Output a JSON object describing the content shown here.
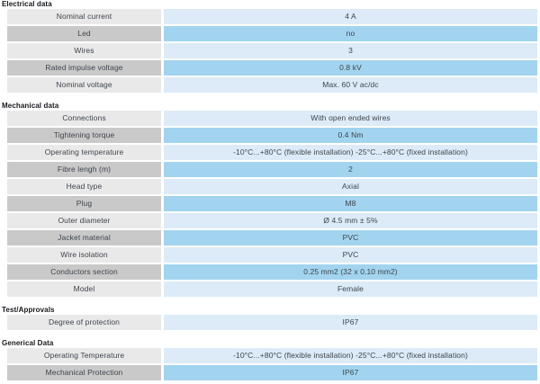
{
  "colors": {
    "label_cell_light": "#e9e9e9",
    "label_cell_dark": "#c9c9c9",
    "value_cell_light": "#dcebf7",
    "value_cell_dark": "#a2d4ef",
    "text": "#3e444c",
    "title_text": "#16191d"
  },
  "table": {
    "sections": [
      {
        "title": "Electrical data",
        "rows": [
          {
            "label": "Nominal current",
            "value": "4 A"
          },
          {
            "label": "Led",
            "value": "no"
          },
          {
            "label": "Wires",
            "value": "3"
          },
          {
            "label": "Rated impulse voltage",
            "value": "0.8 kV"
          },
          {
            "label": "Nominal voltage",
            "value": "Max. 60 V ac/dc"
          }
        ]
      },
      {
        "title": "Mechanical data",
        "rows": [
          {
            "label": "Connections",
            "value": "With open ended wires"
          },
          {
            "label": "Tightening torque",
            "value": "0.4 Nm"
          },
          {
            "label": "Operating temperature",
            "value": "-10°C...+80°C (flexible installation) -25°C...+80°C (fixed installation)"
          },
          {
            "label": "Fibre lengh (m)",
            "value": "2"
          },
          {
            "label": "Head type",
            "value": "Axial"
          },
          {
            "label": "Plug",
            "value": "M8"
          },
          {
            "label": "Outer diameter",
            "value": "Ø 4.5 mm ± 5%"
          },
          {
            "label": "Jacket material",
            "value": "PVC"
          },
          {
            "label": "Wire isolation",
            "value": "PVC"
          },
          {
            "label": "Conductors section",
            "value": "0.25 mm2 (32 x 0.10 mm2)"
          },
          {
            "label": "Model",
            "value": "Female"
          }
        ]
      },
      {
        "title": "Test/Approvals",
        "rows": [
          {
            "label": "Degree of protection",
            "value": "IP67"
          }
        ]
      },
      {
        "title": "Generical Data",
        "rows": [
          {
            "label": "Operating Temperature",
            "value": "-10°C...+80°C (flexible installation) -25°C...+80°C (fixed installation)"
          },
          {
            "label": "Mechanical Protection",
            "value": "IP67"
          }
        ]
      }
    ]
  }
}
